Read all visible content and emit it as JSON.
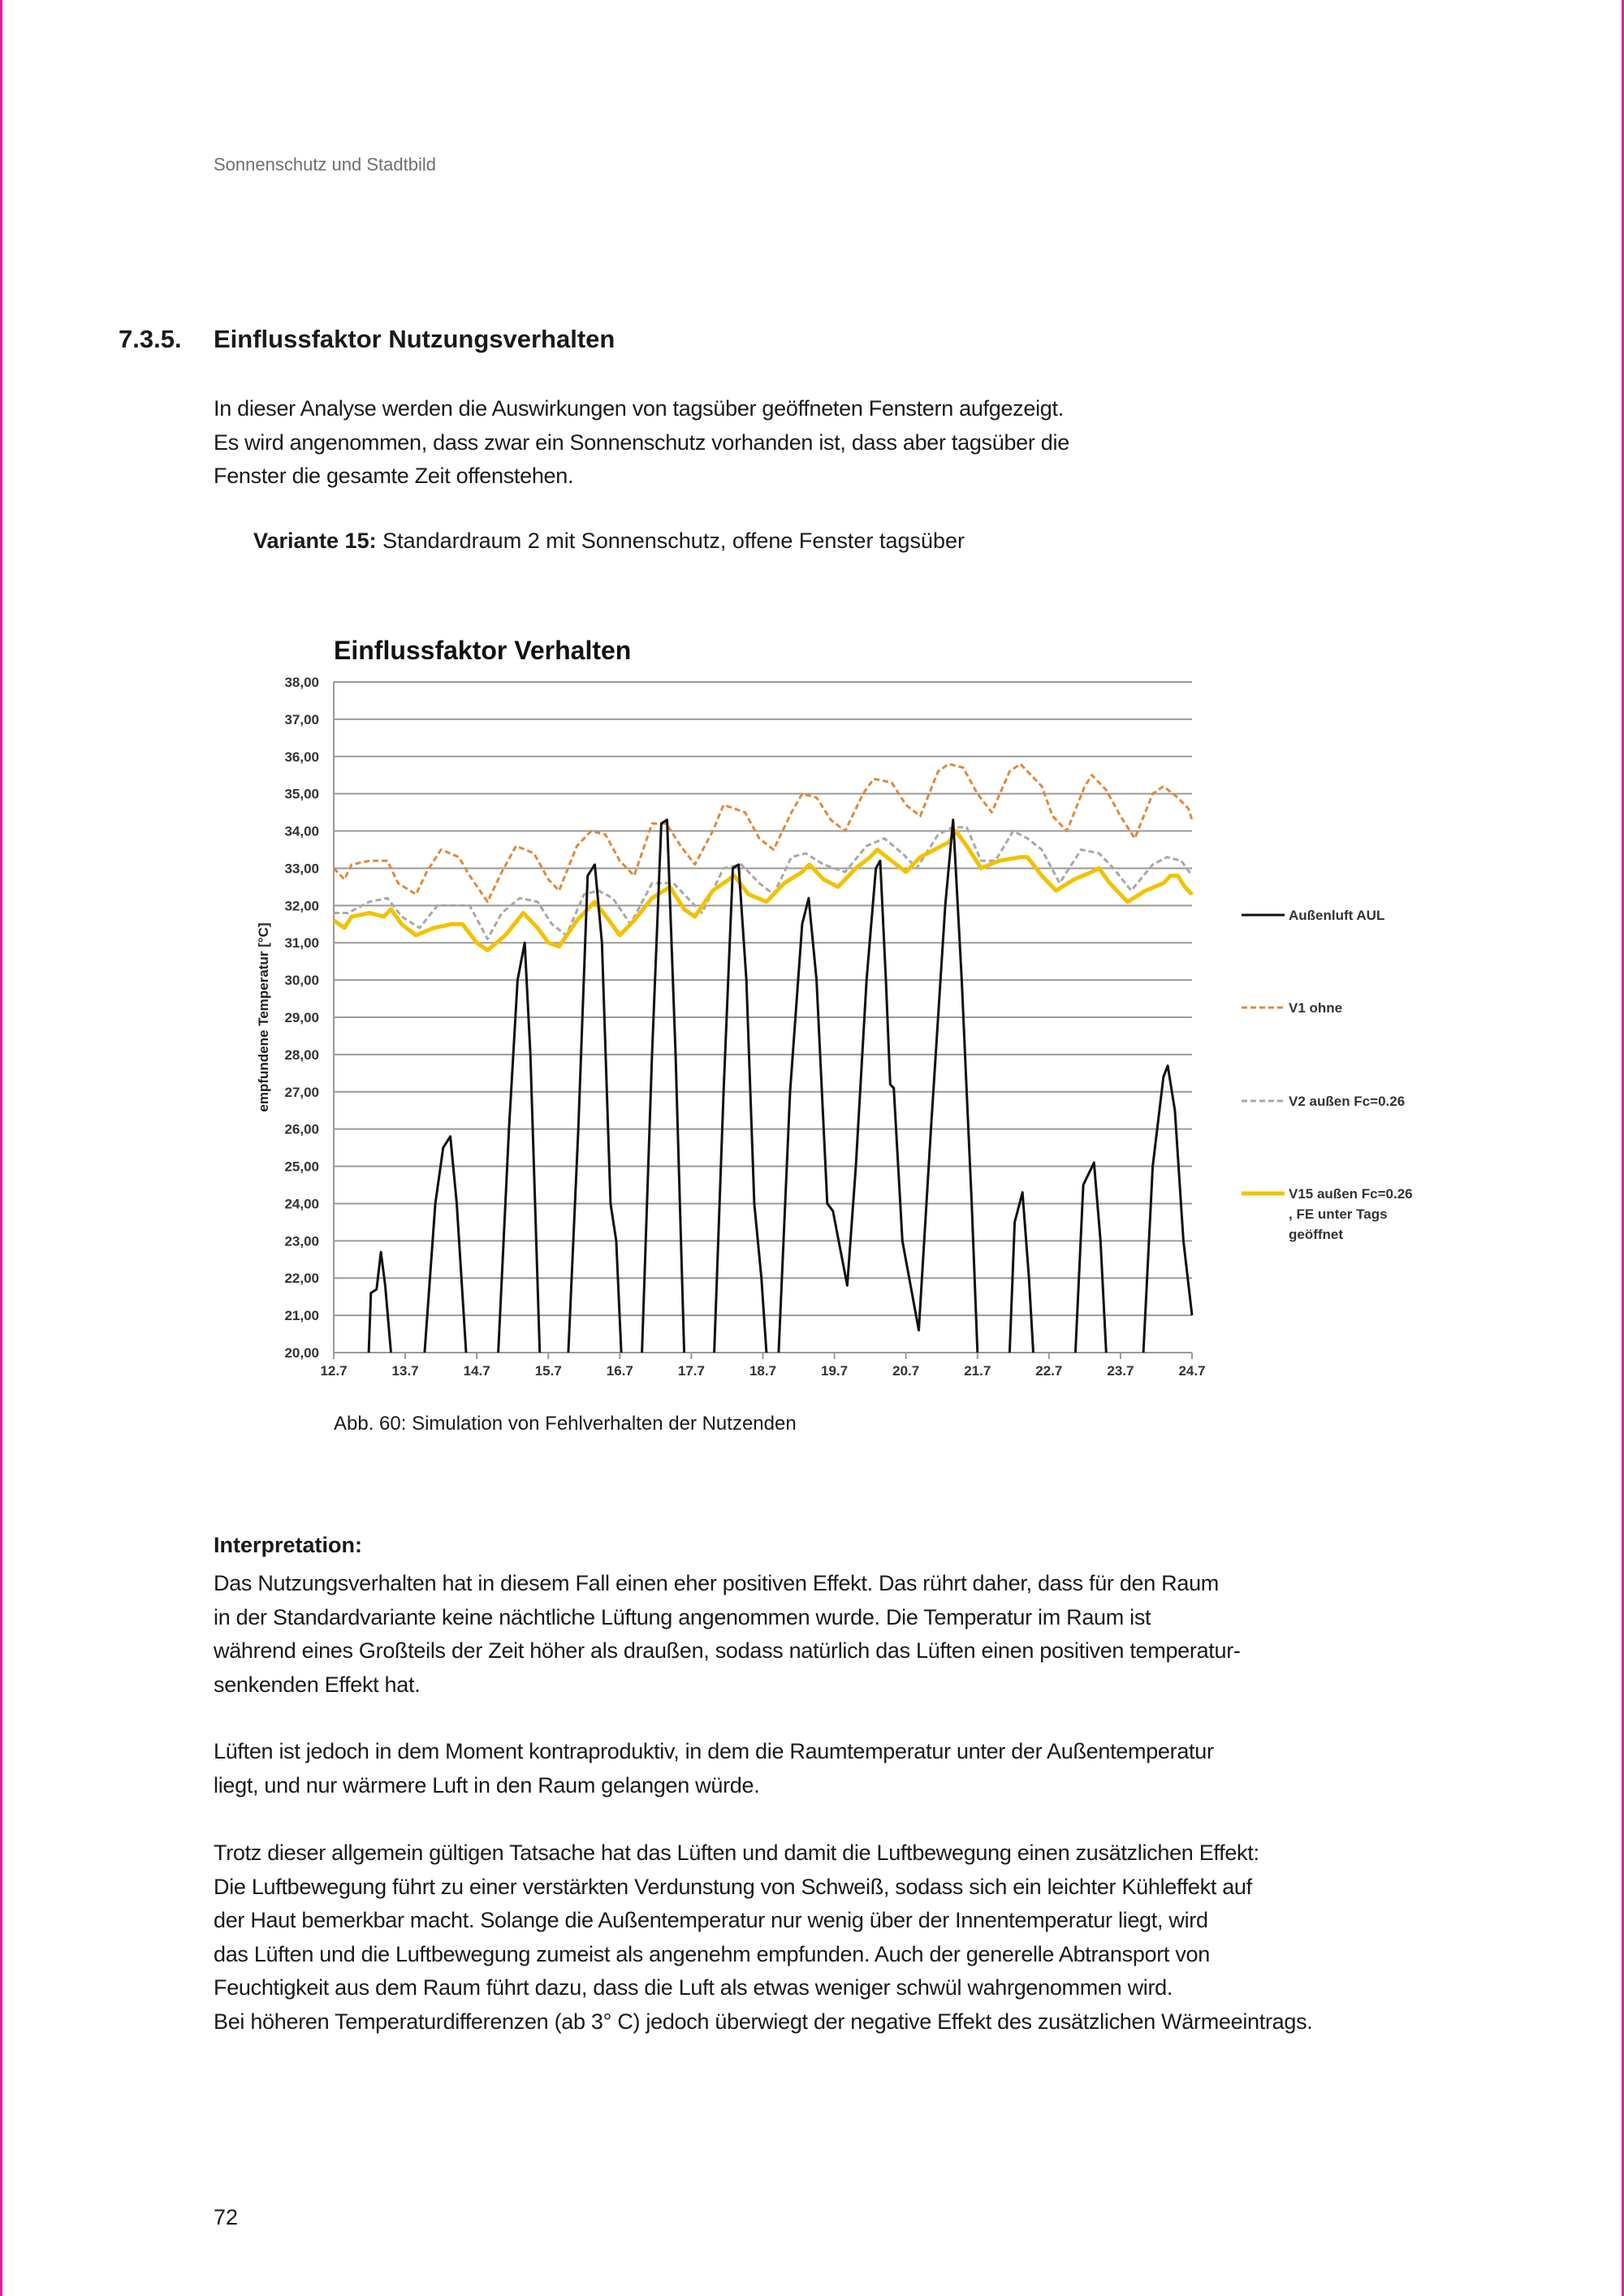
{
  "running_header": "Sonnenschutz und Stadtbild",
  "section": {
    "number": "7.3.5.",
    "title": "Einflussfaktor Nutzungsverhalten"
  },
  "intro_lines": [
    "In dieser Analyse werden die Auswirkungen von tagsüber geöffneten Fenstern aufgezeigt.",
    "Es wird angenommen, dass zwar ein Sonnenschutz vorhanden ist, dass aber tagsüber die",
    "Fenster die gesamte Zeit offenstehen."
  ],
  "variant": {
    "label": "Variante 15:",
    "text": " Standardraum 2 mit Sonnenschutz, offene Fenster tagsüber"
  },
  "caption": "Abb. 60: Simulation von Fehlverhalten der Nutzenden",
  "interpretation": {
    "heading": "Interpretation:",
    "para1": [
      "Das Nutzungsverhalten hat in diesem Fall einen eher positiven Effekt. Das rührt daher, dass für den Raum",
      "in der Standardvariante keine nächtliche Lüftung angenommen wurde. Die Temperatur im Raum ist",
      "während eines Großteils der Zeit höher als draußen, sodass natürlich das Lüften einen positiven temperatur-",
      "senkenden Effekt hat."
    ],
    "para2": [
      "Lüften ist jedoch in dem Moment kontraproduktiv, in dem die Raumtemperatur unter der Außentemperatur",
      "liegt, und nur wärmere Luft in den Raum gelangen würde."
    ],
    "para3": [
      "Trotz dieser allgemein gültigen Tatsache hat das Lüften und damit die Luftbewegung einen zusätzlichen Effekt:",
      "Die Luftbewegung führt zu einer verstärkten Verdunstung von Schweiß, sodass sich ein leichter Kühleffekt auf",
      "der Haut bemerkbar macht. Solange die Außentemperatur nur wenig über der Innentemperatur liegt, wird",
      "das Lüften und die Luftbewegung zumeist als angenehm empfunden. Auch der generelle Abtransport von",
      "Feuchtigkeit aus dem Raum führt dazu, dass die Luft als etwas weniger schwül wahrgenommen wird.",
      "Bei höheren Temperaturdifferenzen (ab 3° C) jedoch überwiegt der negative Effekt des zusätzlichen Wärmeeintrags."
    ]
  },
  "page_number": "72",
  "chart_data": {
    "type": "line",
    "title": "Einflussfaktor Verhalten",
    "xlabel": "",
    "ylabel": "empfundene Temperatur [°C]",
    "x_unit": "days since 12.7",
    "xlim": [
      0,
      12
    ],
    "ylim": [
      20,
      38
    ],
    "x_ticks": [
      "12.7",
      "13.7",
      "14.7",
      "15.7",
      "16.7",
      "17.7",
      "18.7",
      "19.7",
      "20.7",
      "21.7",
      "22.7",
      "23.7",
      "24.7"
    ],
    "y_ticks": [
      "20,00",
      "21,00",
      "22,00",
      "23,00",
      "24,00",
      "25,00",
      "26,00",
      "27,00",
      "28,00",
      "29,00",
      "30,00",
      "31,00",
      "32,00",
      "33,00",
      "34,00",
      "35,00",
      "36,00",
      "37,00",
      "38,00"
    ],
    "grid": true,
    "legend_position": "right",
    "series": [
      {
        "name": "Außenluft AUL",
        "color": "#111111",
        "style": "solid",
        "points": [
          [
            0.47,
            19
          ],
          [
            0.52,
            21.6
          ],
          [
            0.6,
            21.7
          ],
          [
            0.66,
            22.7
          ],
          [
            0.72,
            21.8
          ],
          [
            0.8,
            20
          ],
          [
            0.92,
            18
          ],
          [
            1.2,
            18
          ],
          [
            1.27,
            20
          ],
          [
            1.42,
            24
          ],
          [
            1.53,
            25.5
          ],
          [
            1.63,
            25.8
          ],
          [
            1.72,
            24
          ],
          [
            1.85,
            20
          ],
          [
            1.95,
            17
          ],
          [
            2.2,
            17
          ],
          [
            2.3,
            20
          ],
          [
            2.45,
            26
          ],
          [
            2.57,
            30
          ],
          [
            2.67,
            31
          ],
          [
            2.75,
            28
          ],
          [
            2.88,
            20
          ],
          [
            3.0,
            17
          ],
          [
            3.2,
            17
          ],
          [
            3.28,
            20
          ],
          [
            3.42,
            26
          ],
          [
            3.55,
            32.8
          ],
          [
            3.65,
            33.1
          ],
          [
            3.75,
            31
          ],
          [
            3.87,
            24
          ],
          [
            3.95,
            23
          ],
          [
            4.02,
            20
          ],
          [
            4.1,
            17
          ],
          [
            4.25,
            17
          ],
          [
            4.31,
            20
          ],
          [
            4.45,
            28
          ],
          [
            4.58,
            34.2
          ],
          [
            4.66,
            34.3
          ],
          [
            4.78,
            28
          ],
          [
            4.9,
            20
          ],
          [
            5.0,
            17
          ],
          [
            5.25,
            17
          ],
          [
            5.32,
            20
          ],
          [
            5.45,
            27
          ],
          [
            5.58,
            33.0
          ],
          [
            5.66,
            33.1
          ],
          [
            5.77,
            30
          ],
          [
            5.88,
            24
          ],
          [
            5.98,
            22
          ],
          [
            6.05,
            20
          ],
          [
            6.1,
            18
          ],
          [
            6.15,
            18
          ],
          [
            6.22,
            20
          ],
          [
            6.38,
            27
          ],
          [
            6.55,
            31.5
          ],
          [
            6.64,
            32.2
          ],
          [
            6.75,
            30
          ],
          [
            6.9,
            24
          ],
          [
            6.98,
            23.8
          ],
          [
            7.18,
            21.8
          ],
          [
            7.3,
            25
          ],
          [
            7.45,
            30
          ],
          [
            7.58,
            33
          ],
          [
            7.64,
            33.2
          ],
          [
            7.72,
            30
          ],
          [
            7.78,
            27.2
          ],
          [
            7.83,
            27.1
          ],
          [
            7.95,
            23
          ],
          [
            8.18,
            20.6
          ],
          [
            8.35,
            26
          ],
          [
            8.55,
            32
          ],
          [
            8.66,
            34.3
          ],
          [
            8.78,
            30
          ],
          [
            8.85,
            27
          ],
          [
            8.92,
            24
          ],
          [
            9.0,
            20
          ],
          [
            9.1,
            17
          ],
          [
            9.4,
            17
          ],
          [
            9.45,
            20
          ],
          [
            9.52,
            23.5
          ],
          [
            9.63,
            24.3
          ],
          [
            9.72,
            22
          ],
          [
            9.78,
            20
          ],
          [
            9.85,
            17
          ],
          [
            10.3,
            17
          ],
          [
            10.37,
            20
          ],
          [
            10.48,
            24.5
          ],
          [
            10.63,
            25.1
          ],
          [
            10.72,
            23
          ],
          [
            10.8,
            20
          ],
          [
            10.9,
            17
          ],
          [
            11.25,
            17
          ],
          [
            11.32,
            20
          ],
          [
            11.45,
            25
          ],
          [
            11.6,
            27.4
          ],
          [
            11.66,
            27.7
          ],
          [
            11.76,
            26.5
          ],
          [
            11.88,
            23
          ],
          [
            12.0,
            21
          ]
        ]
      },
      {
        "name": "V1 ohne",
        "color": "#e08a3a",
        "style": "dashed",
        "points": [
          [
            0,
            33.0
          ],
          [
            0.15,
            32.7
          ],
          [
            0.25,
            33.1
          ],
          [
            0.5,
            33.2
          ],
          [
            0.75,
            33.2
          ],
          [
            0.9,
            32.6
          ],
          [
            1.15,
            32.3
          ],
          [
            1.3,
            32.9
          ],
          [
            1.5,
            33.5
          ],
          [
            1.75,
            33.3
          ],
          [
            1.9,
            32.8
          ],
          [
            2.15,
            32.1
          ],
          [
            2.35,
            32.9
          ],
          [
            2.55,
            33.6
          ],
          [
            2.8,
            33.4
          ],
          [
            3.0,
            32.7
          ],
          [
            3.15,
            32.4
          ],
          [
            3.4,
            33.6
          ],
          [
            3.6,
            34.0
          ],
          [
            3.8,
            33.9
          ],
          [
            4.0,
            33.2
          ],
          [
            4.2,
            32.8
          ],
          [
            4.45,
            34.2
          ],
          [
            4.65,
            34.2
          ],
          [
            4.85,
            33.6
          ],
          [
            5.05,
            33.1
          ],
          [
            5.3,
            34.0
          ],
          [
            5.45,
            34.7
          ],
          [
            5.75,
            34.5
          ],
          [
            5.95,
            33.8
          ],
          [
            6.15,
            33.5
          ],
          [
            6.4,
            34.5
          ],
          [
            6.55,
            35.0
          ],
          [
            6.75,
            34.9
          ],
          [
            6.95,
            34.3
          ],
          [
            7.15,
            34.0
          ],
          [
            7.4,
            35.0
          ],
          [
            7.55,
            35.4
          ],
          [
            7.8,
            35.3
          ],
          [
            8.0,
            34.7
          ],
          [
            8.2,
            34.4
          ],
          [
            8.45,
            35.6
          ],
          [
            8.6,
            35.8
          ],
          [
            8.8,
            35.7
          ],
          [
            9.0,
            35.0
          ],
          [
            9.2,
            34.5
          ],
          [
            9.45,
            35.6
          ],
          [
            9.6,
            35.8
          ],
          [
            9.9,
            35.2
          ],
          [
            10.05,
            34.4
          ],
          [
            10.25,
            34.0
          ],
          [
            10.5,
            35.2
          ],
          [
            10.6,
            35.5
          ],
          [
            10.8,
            35.1
          ],
          [
            11.0,
            34.4
          ],
          [
            11.2,
            33.8
          ],
          [
            11.45,
            35.0
          ],
          [
            11.6,
            35.2
          ],
          [
            11.8,
            34.9
          ],
          [
            11.95,
            34.6
          ],
          [
            12.0,
            34.3
          ]
        ]
      },
      {
        "name": "V2 außen Fc=0.26",
        "color": "#a8a8a8",
        "style": "dashed",
        "points": [
          [
            0,
            31.8
          ],
          [
            0.2,
            31.8
          ],
          [
            0.5,
            32.1
          ],
          [
            0.75,
            32.2
          ],
          [
            0.95,
            31.7
          ],
          [
            1.2,
            31.4
          ],
          [
            1.45,
            32.0
          ],
          [
            1.7,
            32.0
          ],
          [
            1.9,
            32.0
          ],
          [
            2.15,
            31.1
          ],
          [
            2.35,
            31.8
          ],
          [
            2.6,
            32.2
          ],
          [
            2.85,
            32.1
          ],
          [
            3.05,
            31.5
          ],
          [
            3.25,
            31.2
          ],
          [
            3.5,
            32.3
          ],
          [
            3.7,
            32.4
          ],
          [
            3.9,
            32.2
          ],
          [
            4.15,
            31.5
          ],
          [
            4.45,
            32.6
          ],
          [
            4.75,
            32.6
          ],
          [
            4.95,
            32.2
          ],
          [
            5.15,
            31.8
          ],
          [
            5.45,
            33.0
          ],
          [
            5.7,
            33.1
          ],
          [
            5.95,
            32.6
          ],
          [
            6.15,
            32.3
          ],
          [
            6.4,
            33.3
          ],
          [
            6.6,
            33.4
          ],
          [
            6.85,
            33.1
          ],
          [
            7.15,
            32.9
          ],
          [
            7.45,
            33.6
          ],
          [
            7.7,
            33.8
          ],
          [
            7.95,
            33.4
          ],
          [
            8.15,
            33.0
          ],
          [
            8.45,
            33.9
          ],
          [
            8.65,
            34.1
          ],
          [
            8.85,
            34.1
          ],
          [
            9.05,
            33.2
          ],
          [
            9.25,
            33.2
          ],
          [
            9.5,
            34.0
          ],
          [
            9.7,
            33.8
          ],
          [
            9.9,
            33.5
          ],
          [
            10.15,
            32.6
          ],
          [
            10.45,
            33.5
          ],
          [
            10.7,
            33.4
          ],
          [
            10.9,
            33.0
          ],
          [
            11.15,
            32.4
          ],
          [
            11.45,
            33.1
          ],
          [
            11.65,
            33.3
          ],
          [
            11.85,
            33.2
          ],
          [
            12.0,
            32.8
          ]
        ]
      },
      {
        "name": "V15 außen Fc=0.26 , FE unter Tags geöffnet",
        "color": "#f2c200",
        "style": "solid",
        "legend_lines": [
          "V15 außen Fc=0.26",
          ", FE unter Tags",
          "geöffnet"
        ],
        "points": [
          [
            0,
            31.6
          ],
          [
            0.15,
            31.4
          ],
          [
            0.25,
            31.7
          ],
          [
            0.5,
            31.8
          ],
          [
            0.7,
            31.7
          ],
          [
            0.8,
            31.9
          ],
          [
            0.95,
            31.5
          ],
          [
            1.15,
            31.2
          ],
          [
            1.4,
            31.4
          ],
          [
            1.65,
            31.5
          ],
          [
            1.8,
            31.5
          ],
          [
            2.0,
            31.0
          ],
          [
            2.15,
            30.8
          ],
          [
            2.4,
            31.2
          ],
          [
            2.65,
            31.8
          ],
          [
            2.85,
            31.4
          ],
          [
            3.0,
            31.0
          ],
          [
            3.15,
            30.9
          ],
          [
            3.4,
            31.6
          ],
          [
            3.65,
            32.1
          ],
          [
            3.85,
            31.6
          ],
          [
            4.0,
            31.2
          ],
          [
            4.2,
            31.6
          ],
          [
            4.45,
            32.2
          ],
          [
            4.7,
            32.5
          ],
          [
            4.9,
            31.9
          ],
          [
            5.05,
            31.7
          ],
          [
            5.3,
            32.4
          ],
          [
            5.6,
            32.8
          ],
          [
            5.8,
            32.3
          ],
          [
            6.05,
            32.1
          ],
          [
            6.3,
            32.6
          ],
          [
            6.55,
            32.9
          ],
          [
            6.65,
            33.1
          ],
          [
            6.85,
            32.7
          ],
          [
            7.05,
            32.5
          ],
          [
            7.3,
            33.0
          ],
          [
            7.5,
            33.3
          ],
          [
            7.6,
            33.5
          ],
          [
            7.8,
            33.2
          ],
          [
            8.0,
            32.9
          ],
          [
            8.2,
            33.3
          ],
          [
            8.4,
            33.5
          ],
          [
            8.6,
            33.7
          ],
          [
            8.7,
            34.0
          ],
          [
            8.85,
            33.6
          ],
          [
            9.05,
            33.0
          ],
          [
            9.3,
            33.2
          ],
          [
            9.6,
            33.3
          ],
          [
            9.7,
            33.3
          ],
          [
            9.9,
            32.8
          ],
          [
            10.1,
            32.4
          ],
          [
            10.35,
            32.7
          ],
          [
            10.6,
            32.9
          ],
          [
            10.7,
            33.0
          ],
          [
            10.85,
            32.6
          ],
          [
            11.1,
            32.1
          ],
          [
            11.35,
            32.4
          ],
          [
            11.6,
            32.6
          ],
          [
            11.7,
            32.8
          ],
          [
            11.8,
            32.8
          ],
          [
            11.9,
            32.5
          ],
          [
            12.0,
            32.3
          ]
        ]
      }
    ]
  }
}
